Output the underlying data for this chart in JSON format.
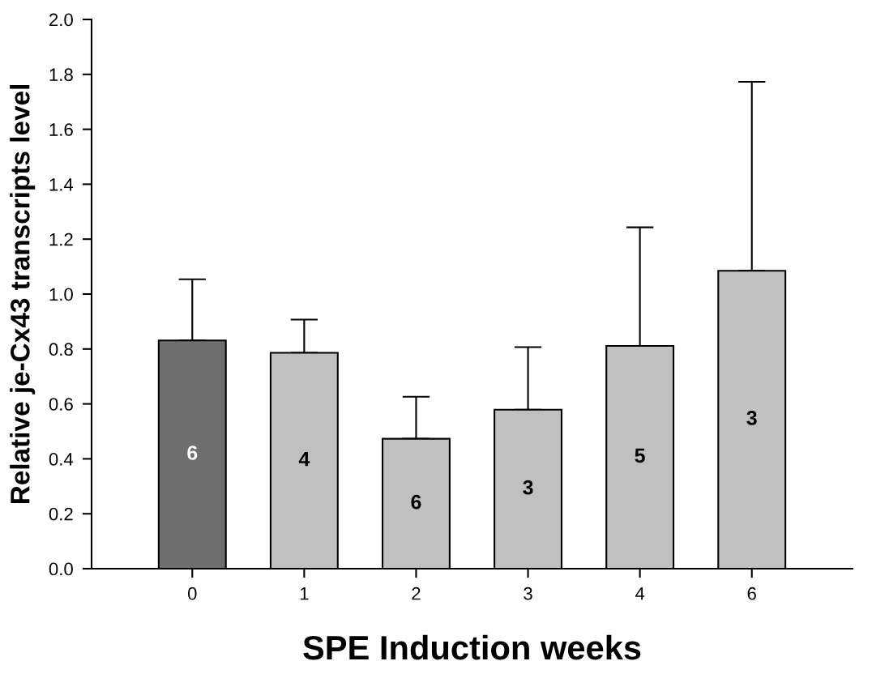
{
  "chart_data": {
    "type": "bar",
    "xlabel": "SPE Induction weeks",
    "ylabel": "Relative je-Cx43 transcripts level",
    "categories": [
      "0",
      "1",
      "2",
      "3",
      "4",
      "6"
    ],
    "values": [
      0.831,
      0.786,
      0.473,
      0.579,
      0.811,
      1.085
    ],
    "colors": [
      "#6e6e6e",
      "#c0c0c0",
      "#c0c0c0",
      "#c0c0c0",
      "#c0c0c0",
      "#c0c0c0"
    ],
    "errors": [
      [
        0.831,
        1.054
      ],
      [
        0.786,
        0.907
      ],
      [
        0.473,
        0.626
      ],
      [
        0.579,
        0.807
      ],
      [
        0.811,
        1.243
      ],
      [
        1.085,
        1.773
      ]
    ],
    "ylim": [
      0,
      2.0
    ],
    "yticks": [
      {
        "value": 0,
        "label": "0.0"
      },
      {
        "value": 0.2,
        "label": "0.2"
      },
      {
        "value": 0.4,
        "label": "0.4"
      },
      {
        "value": 0.6,
        "label": "0.6"
      },
      {
        "value": 0.8,
        "label": "0.8"
      },
      {
        "value": 1.0,
        "label": "1.0"
      },
      {
        "value": 1.2,
        "label": "1.2"
      },
      {
        "value": 1.4,
        "label": "1.4"
      },
      {
        "value": 1.6,
        "label": "1.6"
      },
      {
        "value": 1.8,
        "label": "1.8"
      },
      {
        "value": 2.0,
        "label": "2.0"
      }
    ],
    "annotations": [
      "6",
      "4",
      "6",
      "3",
      "5",
      "3"
    ],
    "grid": false,
    "legend": false
  }
}
